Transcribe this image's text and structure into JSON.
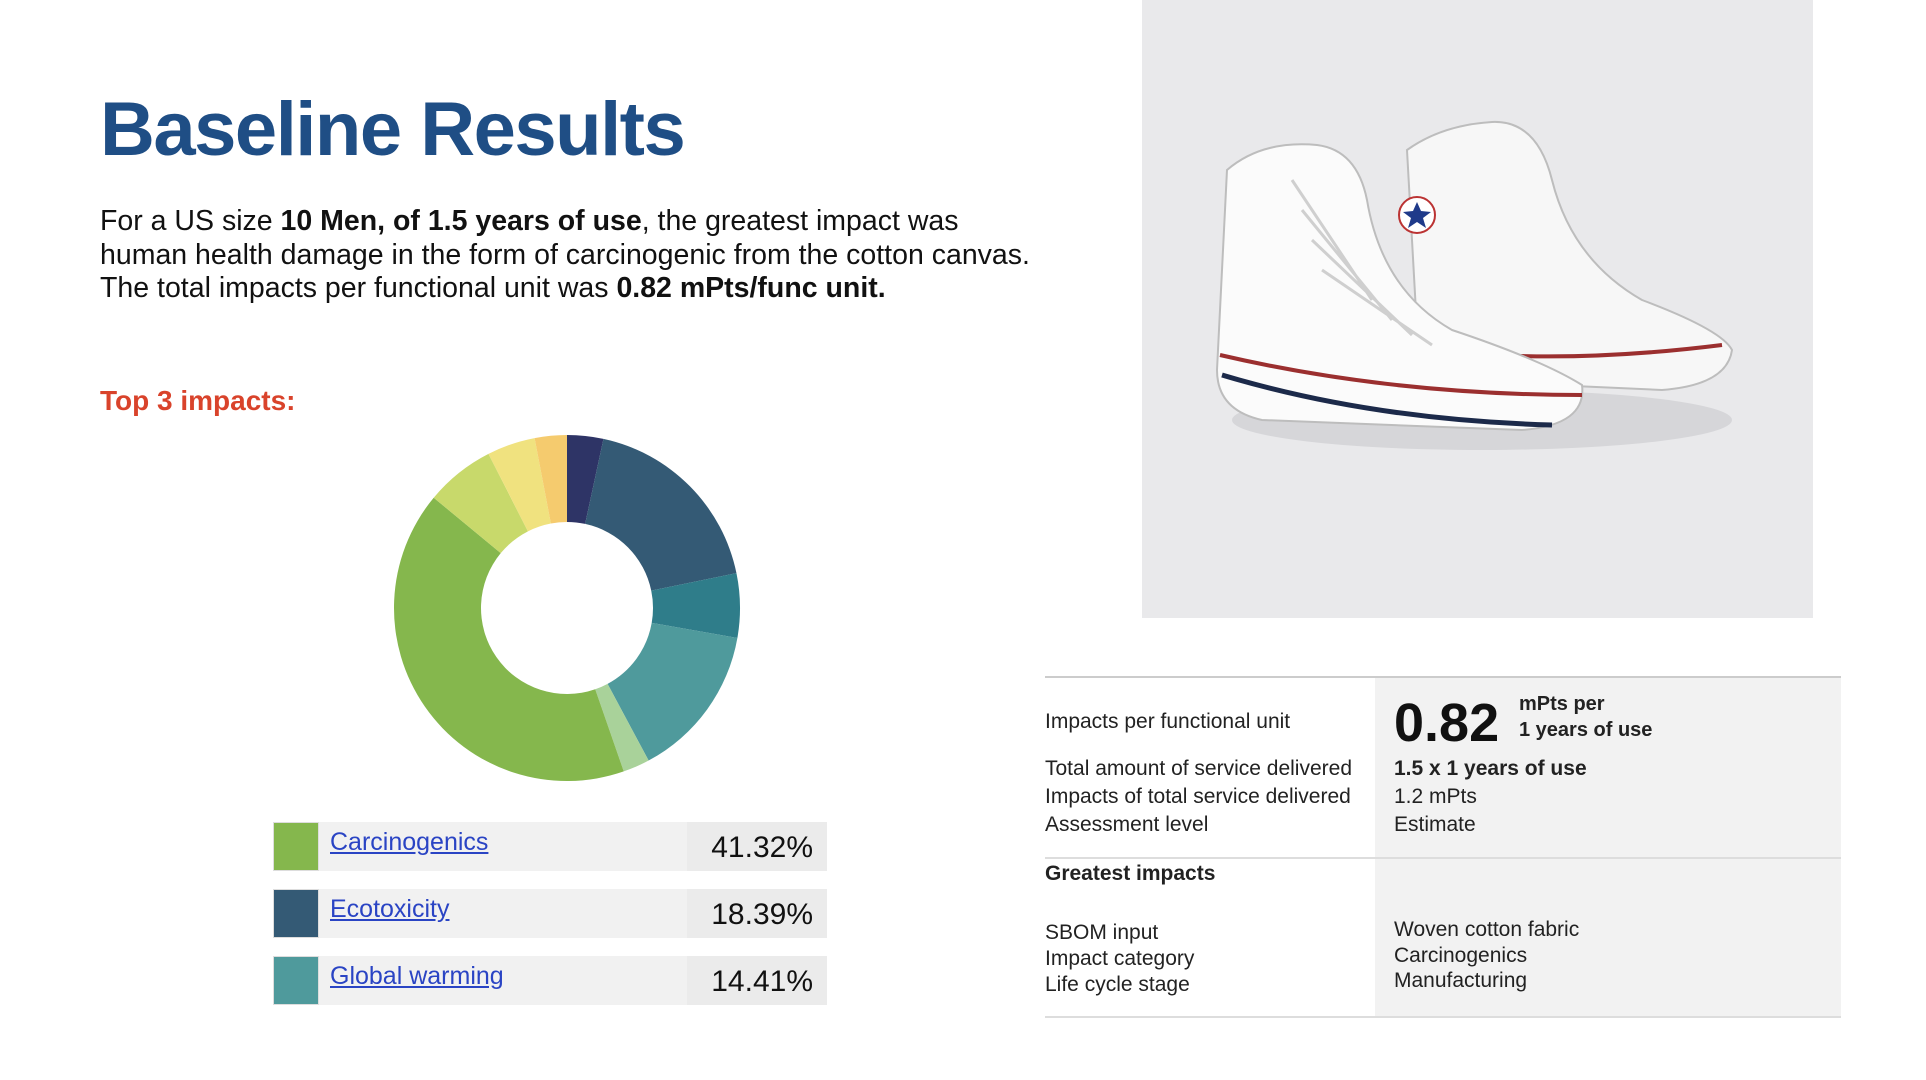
{
  "header": {
    "title": "Baseline Results"
  },
  "paragraph": [
    {
      "text": "For a US size ",
      "bold": false
    },
    {
      "text": "10 Men, of 1.5 years of use",
      "bold": true
    },
    {
      "text": ", the greatest impact was human health damage in the form of carcinogenic from the cotton canvas. The total impacts per functional unit was ",
      "bold": false
    },
    {
      "text": "0.82 mPts/func unit.",
      "bold": true
    }
  ],
  "subtitle": "Top 3 impacts:",
  "chart_data": {
    "type": "pie",
    "donut": true,
    "categories": [
      null,
      "Ecotoxicity",
      null,
      "Global warming",
      null,
      "Carcinogenics",
      null,
      null,
      null
    ],
    "values": [
      3.38,
      18.39,
      6,
      14.41,
      2.5,
      41.32,
      6.5,
      4.5,
      3
    ],
    "value_labels": [
      null,
      "18.39%",
      null,
      "14.41%",
      null,
      "41.32%",
      null,
      null,
      null
    ],
    "colors": [
      "#2e3466",
      "#345a75",
      "#2f7d8a",
      "#4f9a9c",
      "#a9d29a",
      "#85b74d",
      "#c8d96b",
      "#f0e27f",
      "#f5cb6e"
    ]
  },
  "info": {
    "rows": [
      {
        "label": "Impacts per functional unit",
        "value": "0.82",
        "unit_line1": "mPts per",
        "unit_line2": "1 years of use"
      },
      {
        "label": "Total amount of service delivered",
        "value": "1.5 x 1 years of use"
      },
      {
        "label": "Impacts of total service delivered",
        "value": "1.2 mPts"
      },
      {
        "label": "Assessment level",
        "value": "Estimate"
      }
    ],
    "section": "Greatest impacts",
    "impacts": [
      {
        "label": "SBOM input",
        "value": "Woven cotton fabric"
      },
      {
        "label": "Impact category",
        "value": "Carcinogenics"
      },
      {
        "label": "Life cycle stage",
        "value": "Manufacturing"
      }
    ]
  }
}
